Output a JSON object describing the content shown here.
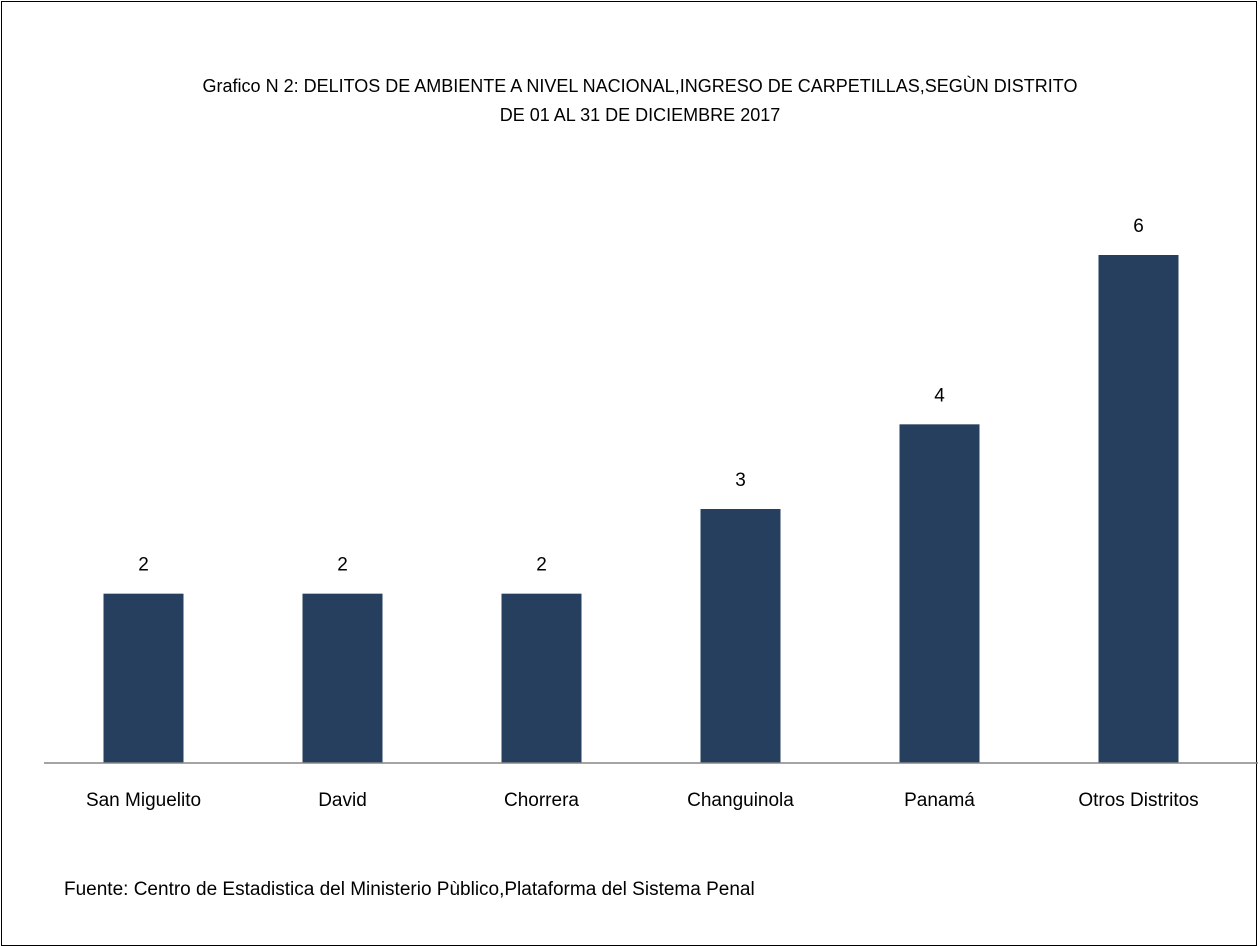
{
  "chart_data": {
    "type": "bar",
    "title": "Grafico N 2:  DELITOS DE AMBIENTE A NIVEL NACIONAL,INGRESO DE CARPETILLAS,SEGÙN DISTRITO",
    "subtitle": "DE 01 AL 31 DE DICIEMBRE 2017",
    "categories": [
      "San Miguelito",
      "David",
      "Chorrera",
      "Changuinola",
      "Panamá",
      "Otros Distritos"
    ],
    "values": [
      2,
      2,
      2,
      3,
      4,
      6
    ],
    "color": "#263f5e",
    "ylim": [
      0,
      6
    ],
    "source": "Fuente: Centro de Estadistica del Ministerio Pùblico,Plataforma del Sistema Penal"
  }
}
